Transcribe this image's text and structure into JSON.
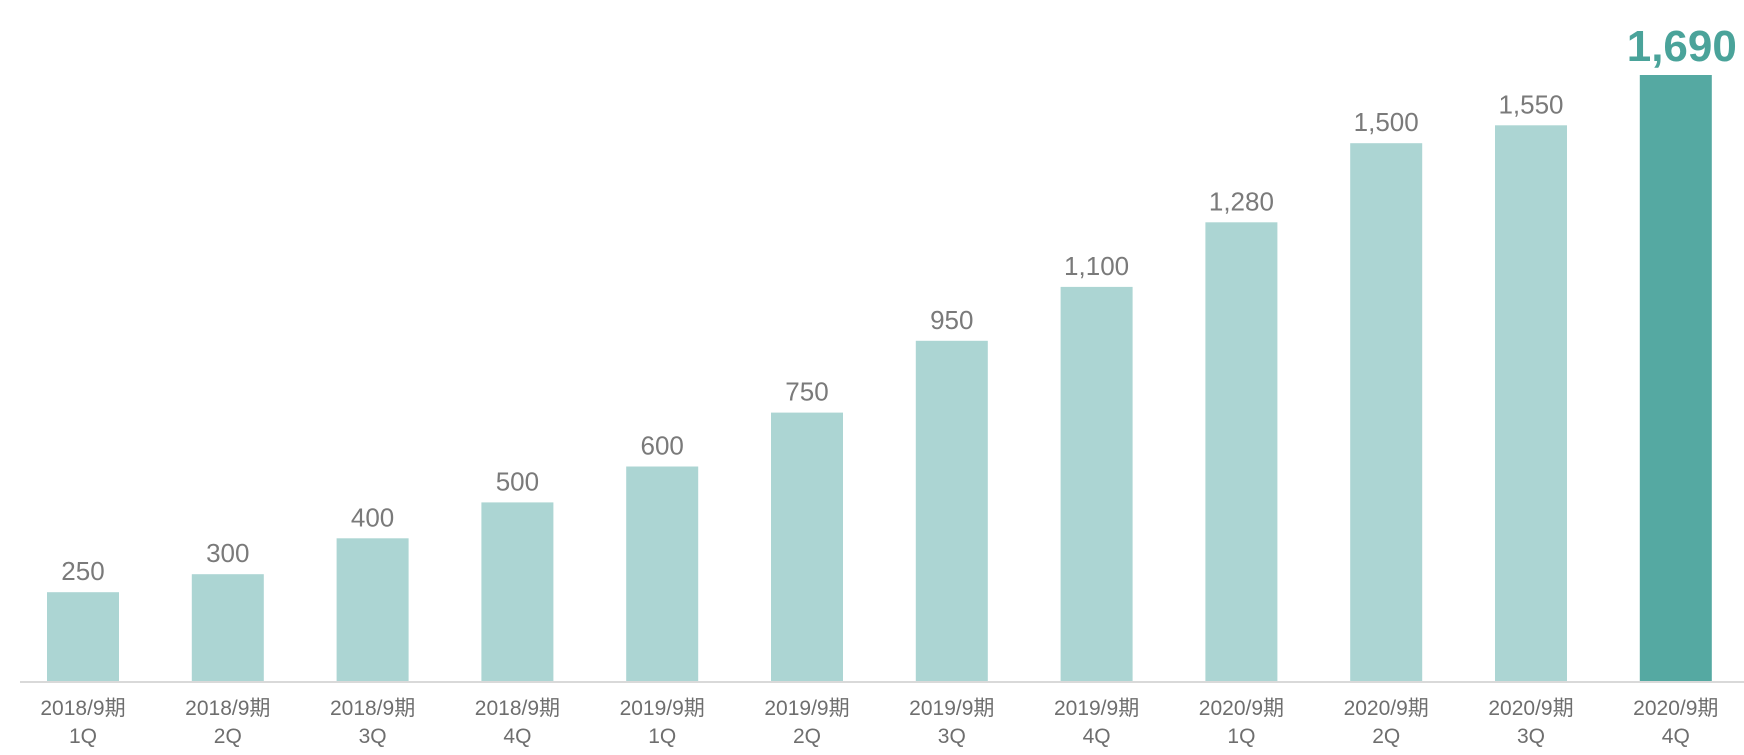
{
  "chart_data": {
    "type": "bar",
    "title": "",
    "xlabel": "",
    "ylabel": "",
    "ylim": [
      0,
      1690
    ],
    "grid": false,
    "categories": [
      [
        "2018/9期",
        "1Q"
      ],
      [
        "2018/9期",
        "2Q"
      ],
      [
        "2018/9期",
        "3Q"
      ],
      [
        "2018/9期",
        "4Q"
      ],
      [
        "2019/9期",
        "1Q"
      ],
      [
        "2019/9期",
        "2Q"
      ],
      [
        "2019/9期",
        "3Q"
      ],
      [
        "2019/9期",
        "4Q"
      ],
      [
        "2020/9期",
        "1Q"
      ],
      [
        "2020/9期",
        "2Q"
      ],
      [
        "2020/9期",
        "3Q"
      ],
      [
        "2020/9期",
        "4Q"
      ]
    ],
    "values": [
      250,
      300,
      400,
      500,
      600,
      750,
      950,
      1100,
      1280,
      1500,
      1550,
      1690
    ],
    "value_labels": [
      "250",
      "300",
      "400",
      "500",
      "600",
      "750",
      "950",
      "1,100",
      "1,280",
      "1,500",
      "1,550",
      "1,690"
    ],
    "highlight_index": 11,
    "colors": {
      "bar": "#acd5d3",
      "highlight_bar": "#55a9a2",
      "highlight_label": "#4aa39a",
      "label": "#7a7a7a",
      "baseline": "#d9d9d9"
    }
  }
}
